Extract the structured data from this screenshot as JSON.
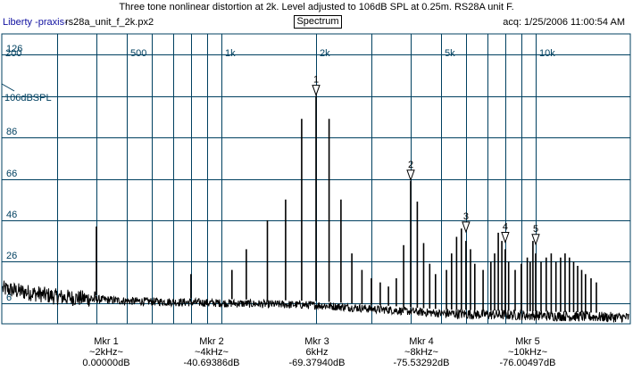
{
  "header": {
    "title": "Three tone nonlinear distortion at 2k. Level adjusted to 106dB SPL at 0.25m. RS28A unit F.",
    "app_name": "Liberty -praxis-",
    "file_name": "rs28a_unit_f_2k.px2",
    "mode_button": "Spectrum",
    "acq": "acq: 1/25/2006 11:00:54 AM"
  },
  "colors": {
    "grid": "#004060",
    "trace": "#000000",
    "label": "#004060"
  },
  "chart_data": {
    "type": "line",
    "title": "Three tone nonlinear distortion at 2k. Level adjusted to 106dB SPL at 0.25m. RS28A unit F.",
    "xscale": "log",
    "xlim": [
      200,
      20000
    ],
    "ylim": [
      -4,
      136
    ],
    "reference_label": "106dBSPL",
    "x_tick_labels": [
      {
        "x": 200,
        "label": "200"
      },
      {
        "x": 500,
        "label": "500"
      },
      {
        "x": 1000,
        "label": "1k"
      },
      {
        "x": 2000,
        "label": "2k"
      },
      {
        "x": 5000,
        "label": "5k"
      },
      {
        "x": 10000,
        "label": "10k"
      }
    ],
    "y_tick_labels": [
      {
        "y": 126,
        "label": "126"
      },
      {
        "y": 86,
        "label": "86"
      },
      {
        "y": 66,
        "label": "66"
      },
      {
        "y": 46,
        "label": "46"
      },
      {
        "y": 26,
        "label": "26"
      },
      {
        "y": 6,
        "label": "6"
      }
    ],
    "series": [
      {
        "peaks": [
          {
            "x": 400,
            "y": 43
          },
          {
            "x": 800,
            "y": 20
          },
          {
            "x": 1080,
            "y": 22
          },
          {
            "x": 1200,
            "y": 32
          },
          {
            "x": 1400,
            "y": 46
          },
          {
            "x": 1600,
            "y": 56
          },
          {
            "x": 1800,
            "y": 95
          },
          {
            "x": 2000,
            "y": 106
          },
          {
            "x": 2200,
            "y": 95
          },
          {
            "x": 2400,
            "y": 56
          },
          {
            "x": 2600,
            "y": 30
          },
          {
            "x": 2800,
            "y": 22
          },
          {
            "x": 3000,
            "y": 18
          },
          {
            "x": 3200,
            "y": 16
          },
          {
            "x": 3400,
            "y": 14
          },
          {
            "x": 3600,
            "y": 18
          },
          {
            "x": 3800,
            "y": 34
          },
          {
            "x": 4000,
            "y": 65
          },
          {
            "x": 4200,
            "y": 55
          },
          {
            "x": 4400,
            "y": 35
          },
          {
            "x": 4600,
            "y": 25
          },
          {
            "x": 4800,
            "y": 20
          },
          {
            "x": 5200,
            "y": 22
          },
          {
            "x": 5400,
            "y": 30
          },
          {
            "x": 5600,
            "y": 38
          },
          {
            "x": 5800,
            "y": 42
          },
          {
            "x": 6000,
            "y": 36
          },
          {
            "x": 6200,
            "y": 32
          },
          {
            "x": 6400,
            "y": 25
          },
          {
            "x": 6800,
            "y": 22
          },
          {
            "x": 7200,
            "y": 26
          },
          {
            "x": 7400,
            "y": 30
          },
          {
            "x": 7600,
            "y": 40
          },
          {
            "x": 7800,
            "y": 36
          },
          {
            "x": 8000,
            "y": 32
          },
          {
            "x": 8200,
            "y": 26
          },
          {
            "x": 8600,
            "y": 22
          },
          {
            "x": 9000,
            "y": 25
          },
          {
            "x": 9400,
            "y": 28
          },
          {
            "x": 9600,
            "y": 26
          },
          {
            "x": 9800,
            "y": 36
          },
          {
            "x": 10000,
            "y": 30
          },
          {
            "x": 10400,
            "y": 26
          },
          {
            "x": 10800,
            "y": 28
          },
          {
            "x": 11200,
            "y": 30
          },
          {
            "x": 11600,
            "y": 26
          },
          {
            "x": 12000,
            "y": 28
          },
          {
            "x": 12400,
            "y": 30
          },
          {
            "x": 12800,
            "y": 28
          },
          {
            "x": 13200,
            "y": 26
          },
          {
            "x": 13600,
            "y": 24
          },
          {
            "x": 14000,
            "y": 22
          },
          {
            "x": 14400,
            "y": 20
          },
          {
            "x": 15000,
            "y": 18
          },
          {
            "x": 15600,
            "y": 16
          }
        ],
        "noise_floor": [
          {
            "x": 200,
            "y": 13
          },
          {
            "x": 300,
            "y": 9
          },
          {
            "x": 500,
            "y": 7
          },
          {
            "x": 1000,
            "y": 6
          },
          {
            "x": 2000,
            "y": 5
          },
          {
            "x": 5000,
            "y": 1
          },
          {
            "x": 10000,
            "y": 0
          },
          {
            "x": 20000,
            "y": -1
          }
        ]
      }
    ],
    "markers": [
      {
        "num": "1",
        "x": 2000,
        "y": 106
      },
      {
        "num": "2",
        "x": 4000,
        "y": 65
      },
      {
        "num": "3",
        "x": 6000,
        "y": 40
      },
      {
        "num": "4",
        "x": 8000,
        "y": 35
      },
      {
        "num": "5",
        "x": 10000,
        "y": 34
      }
    ]
  },
  "markers_table": [
    {
      "name": "Mkr 1",
      "freq": "~2kHz~",
      "value": "0.00000dB"
    },
    {
      "name": "Mkr 2",
      "freq": "~4kHz~",
      "value": "-40.69386dB"
    },
    {
      "name": "Mkr 3",
      "freq": "6kHz",
      "value": "-69.37940dB"
    },
    {
      "name": "Mkr 4",
      "freq": "~8kHz~",
      "value": "-75.53292dB"
    },
    {
      "name": "Mkr 5",
      "freq": "~10kHz~",
      "value": "-76.00497dB"
    }
  ]
}
